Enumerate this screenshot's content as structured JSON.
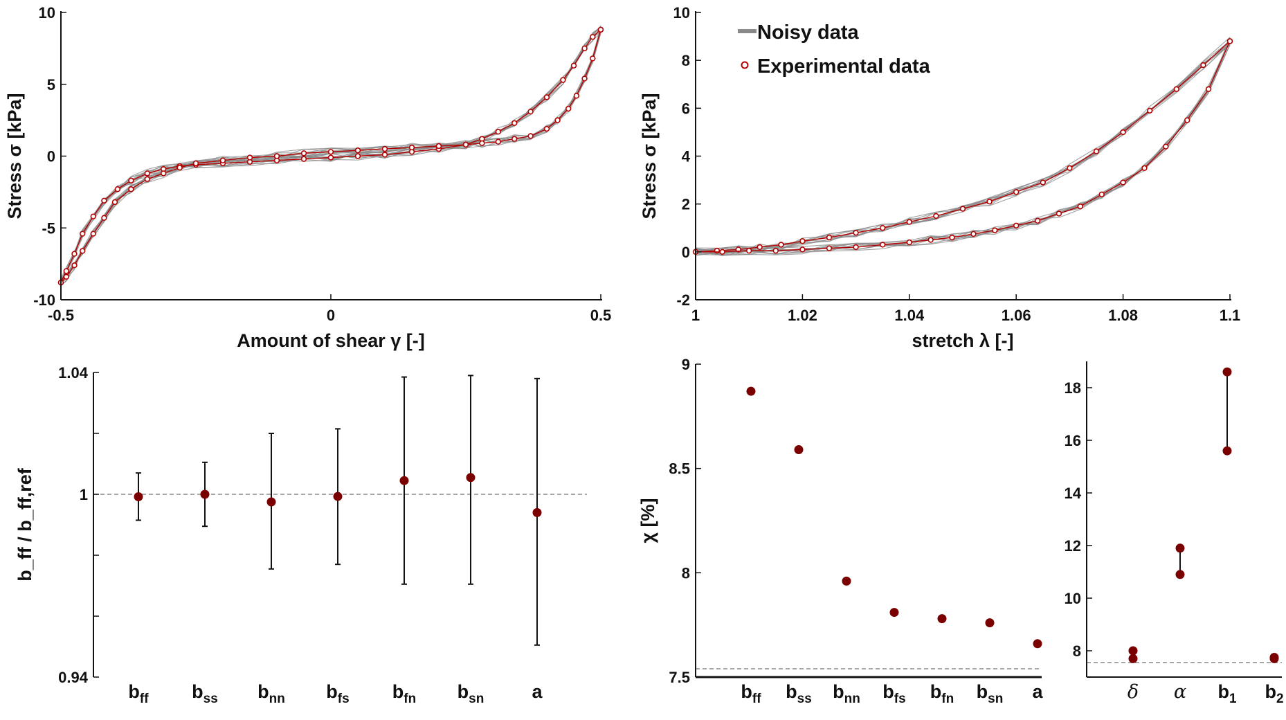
{
  "colors": {
    "noisy": "#8a8a8a",
    "experimental": "#b30000",
    "marker_fill": "#7a0000",
    "reference_line": "#888888"
  },
  "legend": {
    "noisy": "Noisy data",
    "experimental": "Experimental data"
  },
  "chart_data": [
    {
      "id": "shear",
      "type": "line",
      "xlabel": "Amount of shear γ [-]",
      "ylabel": "Stress σ [kPa]",
      "xlim": [
        -0.5,
        0.5
      ],
      "ylim": [
        -10,
        10
      ],
      "xticks": [
        -0.5,
        0,
        0.5
      ],
      "xtick_labels": [
        "-0.5",
        "0",
        "0.5"
      ],
      "yticks": [
        -10,
        -5,
        0,
        5,
        10
      ],
      "ytick_labels": [
        "-10",
        "-5",
        "0",
        "5",
        "10"
      ],
      "noisy_realizations": 10,
      "series": [
        {
          "name": "Experimental data (loading)",
          "x": [
            -0.5,
            -0.49,
            -0.475,
            -0.46,
            -0.44,
            -0.42,
            -0.395,
            -0.37,
            -0.34,
            -0.31,
            -0.28,
            -0.25,
            -0.2,
            -0.15,
            -0.1,
            -0.05,
            0,
            0.05,
            0.1,
            0.15,
            0.2,
            0.25,
            0.28,
            0.31,
            0.34,
            0.37,
            0.4,
            0.43,
            0.45,
            0.47,
            0.485,
            0.5
          ],
          "y": [
            -8.8,
            -8.0,
            -6.8,
            -5.4,
            -4.2,
            -3.1,
            -2.3,
            -1.7,
            -1.2,
            -0.9,
            -0.7,
            -0.6,
            -0.5,
            -0.4,
            -0.3,
            -0.2,
            -0.1,
            0.0,
            0.1,
            0.3,
            0.5,
            0.8,
            1.2,
            1.7,
            2.3,
            3.1,
            4.1,
            5.3,
            6.3,
            7.5,
            8.3,
            8.8
          ]
        },
        {
          "name": "Experimental data (unloading)",
          "x": [
            0.5,
            0.485,
            0.47,
            0.455,
            0.44,
            0.42,
            0.4,
            0.37,
            0.34,
            0.31,
            0.28,
            0.25,
            0.2,
            0.15,
            0.1,
            0.05,
            0,
            -0.05,
            -0.1,
            -0.15,
            -0.2,
            -0.25,
            -0.28,
            -0.31,
            -0.34,
            -0.37,
            -0.4,
            -0.42,
            -0.44,
            -0.46,
            -0.475,
            -0.49,
            -0.5
          ],
          "y": [
            8.8,
            6.8,
            5.4,
            4.2,
            3.3,
            2.5,
            1.9,
            1.4,
            1.2,
            1.0,
            0.9,
            0.8,
            0.7,
            0.6,
            0.5,
            0.4,
            0.3,
            0.2,
            0.0,
            -0.1,
            -0.3,
            -0.5,
            -0.8,
            -1.2,
            -1.6,
            -2.3,
            -3.2,
            -4.3,
            -5.4,
            -6.6,
            -7.6,
            -8.4,
            -8.8
          ]
        }
      ]
    },
    {
      "id": "tension",
      "type": "line",
      "xlabel": "stretch λ [-]",
      "ylabel": "Stress σ [kPa]",
      "xlim": [
        1,
        1.1
      ],
      "ylim": [
        -2,
        10
      ],
      "xticks": [
        1,
        1.02,
        1.04,
        1.06,
        1.08,
        1.1
      ],
      "xtick_labels": [
        "1",
        "1.02",
        "1.04",
        "1.06",
        "1.08",
        "1.1"
      ],
      "yticks": [
        -2,
        0,
        2,
        4,
        6,
        8,
        10
      ],
      "ytick_labels": [
        "-2",
        "0",
        "2",
        "4",
        "6",
        "8",
        "10"
      ],
      "noisy_realizations": 10,
      "series": [
        {
          "name": "Experimental data (loading)",
          "x": [
            1.0,
            1.004,
            1.008,
            1.012,
            1.016,
            1.02,
            1.025,
            1.03,
            1.035,
            1.04,
            1.045,
            1.05,
            1.055,
            1.06,
            1.065,
            1.07,
            1.075,
            1.08,
            1.085,
            1.09,
            1.095,
            1.1
          ],
          "y": [
            0.0,
            0.05,
            0.1,
            0.2,
            0.3,
            0.45,
            0.6,
            0.8,
            1.0,
            1.25,
            1.5,
            1.8,
            2.1,
            2.5,
            2.9,
            3.5,
            4.2,
            5.0,
            5.9,
            6.8,
            7.8,
            8.8
          ]
        },
        {
          "name": "Experimental data (unloading)",
          "x": [
            1.1,
            1.096,
            1.092,
            1.088,
            1.084,
            1.08,
            1.076,
            1.072,
            1.068,
            1.064,
            1.06,
            1.056,
            1.052,
            1.048,
            1.044,
            1.04,
            1.035,
            1.03,
            1.025,
            1.02,
            1.015,
            1.01,
            1.005,
            1.0
          ],
          "y": [
            8.8,
            6.8,
            5.5,
            4.4,
            3.5,
            2.9,
            2.4,
            1.9,
            1.6,
            1.3,
            1.1,
            0.9,
            0.75,
            0.6,
            0.5,
            0.4,
            0.3,
            0.2,
            0.15,
            0.1,
            0.05,
            0.05,
            0.0,
            0.0
          ]
        }
      ]
    },
    {
      "id": "ratio",
      "type": "scatter",
      "xlabel": "",
      "ylabel": "b_ff / b_ff,ref",
      "ylim": [
        0.94,
        1.04
      ],
      "yticks": [
        0.94,
        0.96,
        0.98,
        1.0,
        1.02,
        1.04
      ],
      "ytick_labels": [
        "0.94",
        "",
        "",
        "1",
        "",
        "1.04"
      ],
      "reference_y": 1.0,
      "categories": [
        {
          "base": "b",
          "sub": "ff"
        },
        {
          "base": "b",
          "sub": "ss"
        },
        {
          "base": "b",
          "sub": "nn"
        },
        {
          "base": "b",
          "sub": "fs"
        },
        {
          "base": "b",
          "sub": "fn"
        },
        {
          "base": "b",
          "sub": "sn"
        },
        {
          "base": "a",
          "sub": ""
        }
      ],
      "values": [
        0.9992,
        1.0,
        0.9975,
        0.9993,
        1.0045,
        1.0055,
        0.994
      ],
      "lower": [
        0.9915,
        0.9895,
        0.9755,
        0.977,
        0.9705,
        0.9705,
        0.9505
      ],
      "upper": [
        1.007,
        1.0105,
        1.02,
        1.0215,
        1.0385,
        1.039,
        1.038
      ]
    },
    {
      "id": "chi",
      "type": "scatter",
      "xlabel": "",
      "ylabel": "χ [%]",
      "ylim": [
        7.5,
        9
      ],
      "yticks": [
        7.5,
        8,
        8.5,
        9
      ],
      "ytick_labels": [
        "7.5",
        "8",
        "8.5",
        "9"
      ],
      "reference_y": 7.54,
      "categories": [
        {
          "base": "b",
          "sub": "ff"
        },
        {
          "base": "b",
          "sub": "ss"
        },
        {
          "base": "b",
          "sub": "nn"
        },
        {
          "base": "b",
          "sub": "fs"
        },
        {
          "base": "b",
          "sub": "fn"
        },
        {
          "base": "b",
          "sub": "sn"
        },
        {
          "base": "a",
          "sub": ""
        }
      ],
      "values": [
        8.87,
        8.59,
        7.96,
        7.81,
        7.78,
        7.76,
        7.66
      ]
    },
    {
      "id": "chi_params",
      "type": "scatter",
      "xlabel": "",
      "ylabel": "",
      "ylim": [
        7,
        19
      ],
      "yticks": [
        8,
        10,
        12,
        14,
        16,
        18
      ],
      "ytick_labels": [
        "8",
        "10",
        "12",
        "14",
        "16",
        "18"
      ],
      "reference_y": 7.55,
      "categories": [
        {
          "base": "δ",
          "sub": "",
          "italic": true
        },
        {
          "base": "α",
          "sub": "",
          "italic": true
        },
        {
          "base": "b",
          "sub": "1"
        },
        {
          "base": "b",
          "sub": "2"
        }
      ],
      "low": [
        7.7,
        10.9,
        15.6,
        7.7
      ],
      "high": [
        8.0,
        11.9,
        18.6,
        7.75
      ]
    }
  ]
}
